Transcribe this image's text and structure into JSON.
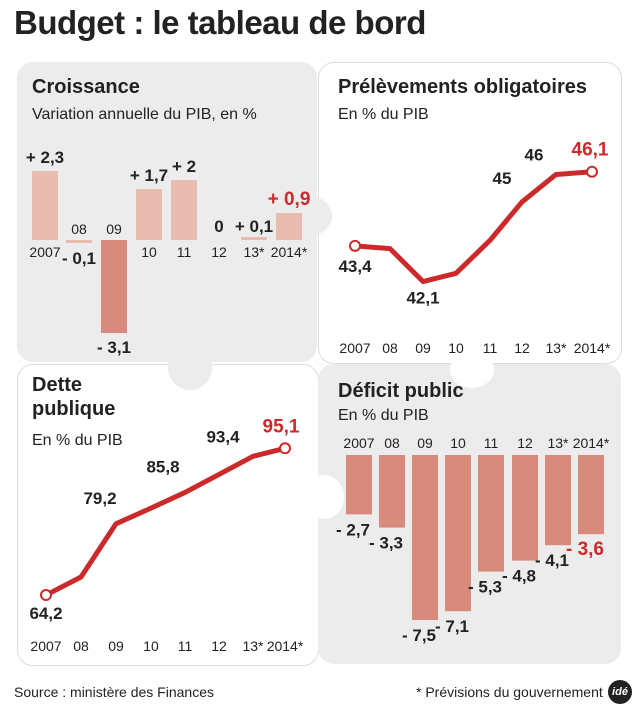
{
  "header": {
    "title": "Budget : le tableau de bord"
  },
  "footer": {
    "source": "Source : ministère des Finances",
    "note": "* Prévisions du gouvernement",
    "logo": "idé"
  },
  "colors": {
    "bar_light": "#e8bdb0",
    "bar_dark": "#d88a7c",
    "line": "#cc2a2a",
    "highlight": "#cc2a2a",
    "text": "#222222",
    "panel_grey": "#ececec"
  },
  "chart_data": [
    {
      "id": "croissance",
      "type": "bar",
      "title": "Croissance",
      "subtitle": "Variation annuelle du PIB, en %",
      "categories": [
        "2007",
        "08",
        "09",
        "10",
        "11",
        "12",
        "13*",
        "2014*"
      ],
      "values": [
        2.3,
        -0.1,
        -3.1,
        1.7,
        2,
        0,
        0.1,
        0.9
      ],
      "labels": [
        "+ 2,3",
        "- 0,1",
        "- 3,1",
        "+ 1,7",
        "+ 2",
        "0",
        "+ 0,1",
        "+ 0,9"
      ]
    },
    {
      "id": "prelevements",
      "type": "line",
      "title": "Prélèvements obligatoires",
      "subtitle": "En % du PIB",
      "categories": [
        "2007",
        "08",
        "09",
        "10",
        "11",
        "12",
        "13*",
        "2014*"
      ],
      "values": [
        43.4,
        43.3,
        42.1,
        42.4,
        43.6,
        45,
        46,
        46.1
      ],
      "labels": [
        "43,4",
        "",
        "42,1",
        "",
        "",
        "45",
        "46",
        "46,1"
      ],
      "ylim": [
        41.5,
        46.6
      ]
    },
    {
      "id": "dette",
      "type": "line",
      "title": "Dette publique",
      "subtitle": "En % du PIB",
      "categories": [
        "2007",
        "08",
        "09",
        "10",
        "11",
        "12",
        "13*",
        "2014*"
      ],
      "values": [
        64.2,
        68,
        79.2,
        82.5,
        85.8,
        89.6,
        93.4,
        95.1
      ],
      "labels": [
        "64,2",
        "",
        "79,2",
        "",
        "85,8",
        "",
        "93,4",
        "95,1"
      ],
      "ylim": [
        60,
        100
      ]
    },
    {
      "id": "deficit",
      "type": "bar",
      "title": "Déficit public",
      "subtitle": "En % du PIB",
      "categories": [
        "2007",
        "08",
        "09",
        "10",
        "11",
        "12",
        "13*",
        "2014*"
      ],
      "values": [
        -2.7,
        -3.3,
        -7.5,
        -7.1,
        -5.3,
        -4.8,
        -4.1,
        -3.6
      ],
      "labels": [
        "- 2,7",
        "- 3,3",
        "- 7,5",
        "- 7,1",
        "- 5,3",
        "- 4,8",
        "- 4,1",
        "- 3,6"
      ]
    }
  ]
}
